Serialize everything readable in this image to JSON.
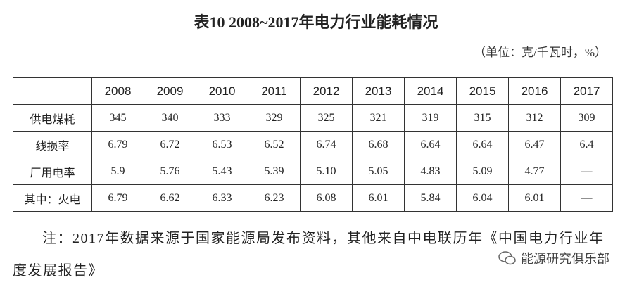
{
  "title": "表10  2008~2017年电力行业能耗情况",
  "unit": "（单位：克/千瓦时，%）",
  "table": {
    "header": [
      "2008",
      "2009",
      "2010",
      "2011",
      "2012",
      "2013",
      "2014",
      "2015",
      "2016",
      "2017"
    ],
    "rows": [
      [
        "供电煤耗",
        "345",
        "340",
        "333",
        "329",
        "325",
        "321",
        "319",
        "315",
        "312",
        "309"
      ],
      [
        "线损率",
        "6.79",
        "6.72",
        "6.53",
        "6.52",
        "6.74",
        "6.68",
        "6.64",
        "6.64",
        "6.47",
        "6.4"
      ],
      [
        "厂用电率",
        "5.9",
        "5.76",
        "5.43",
        "5.39",
        "5.10",
        "5.05",
        "4.83",
        "5.09",
        "4.77",
        "—"
      ],
      [
        "其中：火电",
        "6.79",
        "6.62",
        "6.33",
        "6.23",
        "6.08",
        "6.01",
        "5.84",
        "6.04",
        "6.01",
        "—"
      ]
    ]
  },
  "note": "注：2017年数据来源于国家能源局发布资料，其他来自中电联历年《中国电力行业年度发展报告》",
  "watermark": "能源研究俱乐部"
}
